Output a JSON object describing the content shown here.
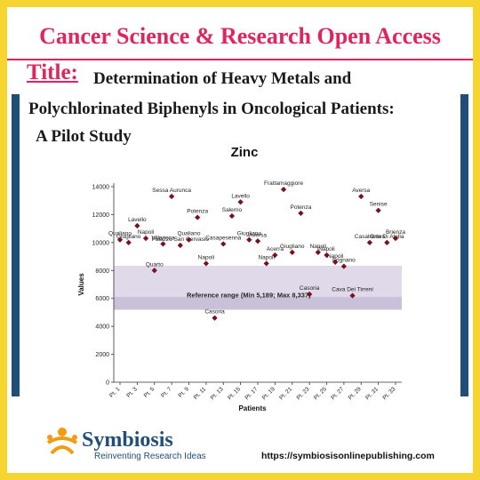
{
  "journal": "Cancer Science & Research Open Access",
  "title_label": "Title:",
  "title_lines": [
    "Determination of Heavy Metals and",
    "Polychlorinated Biphenyls in Oncological Patients:",
    "A Pilot Study"
  ],
  "footer": {
    "brand": "Symbiosis",
    "tagline": "Reinventing Research Ideas",
    "url": "https://symbiosisonlinepublishing.com"
  },
  "colors": {
    "accent": "#e0245e",
    "navy": "#1f4e79",
    "frame": "#f7d531",
    "marker": "#7a0f1e",
    "band": "#d9d2e6"
  },
  "chart_data": {
    "type": "scatter",
    "title": "Zinc",
    "xlabel": "Patients",
    "ylabel": "Values",
    "ylim": [
      0,
      14000
    ],
    "yticks": [
      0,
      2000,
      4000,
      6000,
      8000,
      10000,
      12000,
      14000
    ],
    "x_ticks": [
      "Pt. 1",
      "Pt. 3",
      "Pt. 5",
      "Pt. 7",
      "Pt. 9",
      "Pt. 11",
      "Pt. 13",
      "Pt. 15",
      "Pt. 17",
      "Pt. 19",
      "Pt. 21",
      "Pt. 23",
      "Pt. 25",
      "Pt. 27",
      "Pt. 29",
      "Pt. 31",
      "Pt. 33"
    ],
    "reference_range": {
      "min": 5189,
      "max": 8337,
      "label": "Reference range (Min 5,189; Max 8,337)"
    },
    "grid": false,
    "points": [
      {
        "patient": 1,
        "value": 10200,
        "label": "Qualiano"
      },
      {
        "patient": 2,
        "value": 10000,
        "label": "Giugliano"
      },
      {
        "patient": 3,
        "value": 11200,
        "label": "Lavello"
      },
      {
        "patient": 4,
        "value": 10300,
        "label": "Napoli"
      },
      {
        "patient": 5,
        "value": 8000,
        "label": "Quarto"
      },
      {
        "patient": 6,
        "value": 9900,
        "label": "Villaricca"
      },
      {
        "patient": 7,
        "value": 13300,
        "label": "Sessa Aurunca"
      },
      {
        "patient": 8,
        "value": 9800,
        "label": "Palazzo San Gervasio"
      },
      {
        "patient": 9,
        "value": 10200,
        "label": "Qualiano"
      },
      {
        "patient": 10,
        "value": 11800,
        "label": "Potenza"
      },
      {
        "patient": 11,
        "value": 8500,
        "label": "Napoli"
      },
      {
        "patient": 12,
        "value": 4600,
        "label": "Casoria"
      },
      {
        "patient": 13,
        "value": 9900,
        "label": "Casapesenna"
      },
      {
        "patient": 14,
        "value": 11900,
        "label": "Salerno"
      },
      {
        "patient": 15,
        "value": 12900,
        "label": "Lavello"
      },
      {
        "patient": 16,
        "value": 10200,
        "label": "Giugliano"
      },
      {
        "patient": 17,
        "value": 10100,
        "label": "Aversa"
      },
      {
        "patient": 18,
        "value": 8500,
        "label": "Napoli"
      },
      {
        "patient": 19,
        "value": 9100,
        "label": "Acerra"
      },
      {
        "patient": 20,
        "value": 13800,
        "label": "Frattamaggiore"
      },
      {
        "patient": 21,
        "value": 9300,
        "label": "Giugliano"
      },
      {
        "patient": 22,
        "value": 12100,
        "label": "Potenza"
      },
      {
        "patient": 23,
        "value": 6300,
        "label": "Casoria"
      },
      {
        "patient": 24,
        "value": 9300,
        "label": "Napoli"
      },
      {
        "patient": 25,
        "value": 9100,
        "label": "Napoli"
      },
      {
        "patient": 26,
        "value": 8600,
        "label": "Napoli"
      },
      {
        "patient": 27,
        "value": 8300,
        "label": "Frignano"
      },
      {
        "patient": 28,
        "value": 6200,
        "label": "Cava Dei Tirreni"
      },
      {
        "patient": 29,
        "value": 13300,
        "label": "Aversa"
      },
      {
        "patient": 30,
        "value": 10000,
        "label": "Casalnuovo"
      },
      {
        "patient": 31,
        "value": 12300,
        "label": "Senise"
      },
      {
        "patient": 32,
        "value": 10000,
        "label": "Orta Di Atella"
      },
      {
        "patient": 33,
        "value": 10300,
        "label": "Brienza"
      }
    ]
  }
}
